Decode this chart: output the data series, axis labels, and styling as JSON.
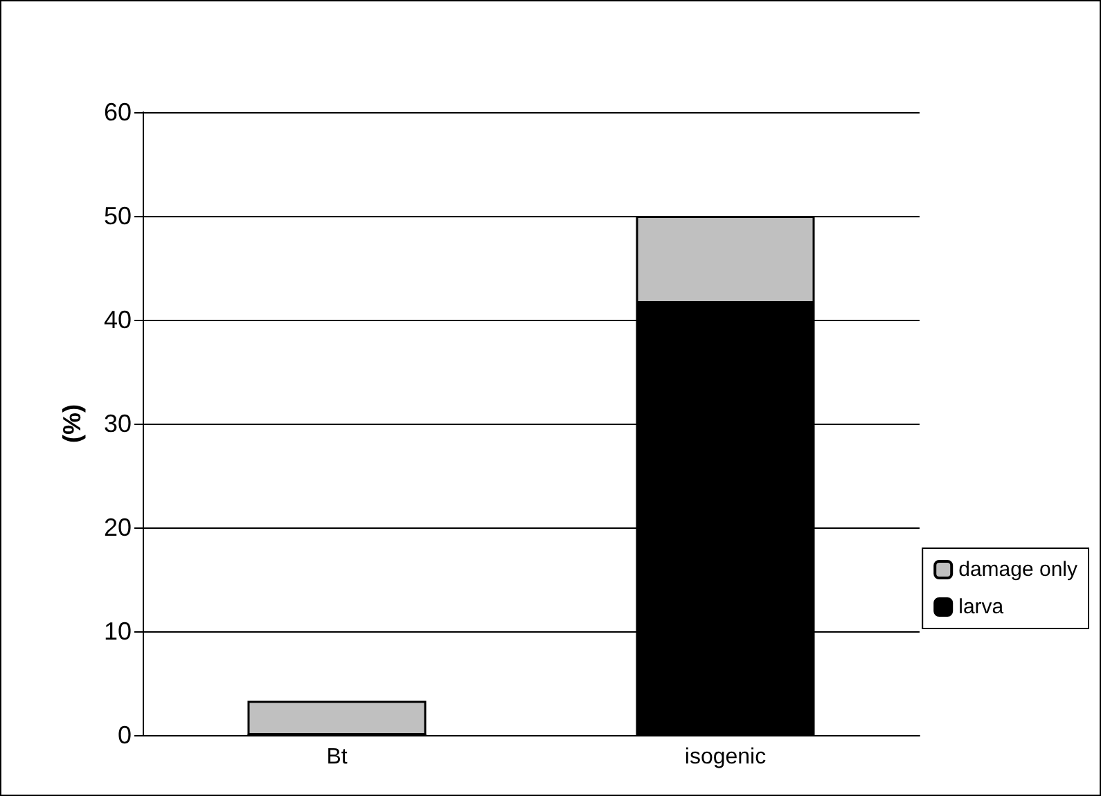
{
  "chart_data": {
    "type": "bar",
    "ylabel": "(%)",
    "categories": [
      "Bt",
      "isogenic"
    ],
    "stacked": true,
    "series": [
      {
        "name": "larva",
        "color": "#000000",
        "values": [
          0,
          41.6
        ]
      },
      {
        "name": "damage only",
        "color": "#c0c0c0",
        "values": [
          3.3,
          8.4
        ]
      }
    ],
    "ylim": [
      0,
      60
    ],
    "yticks": [
      0,
      10,
      20,
      30,
      40,
      50,
      60
    ],
    "grid": "y",
    "legend": "right"
  }
}
